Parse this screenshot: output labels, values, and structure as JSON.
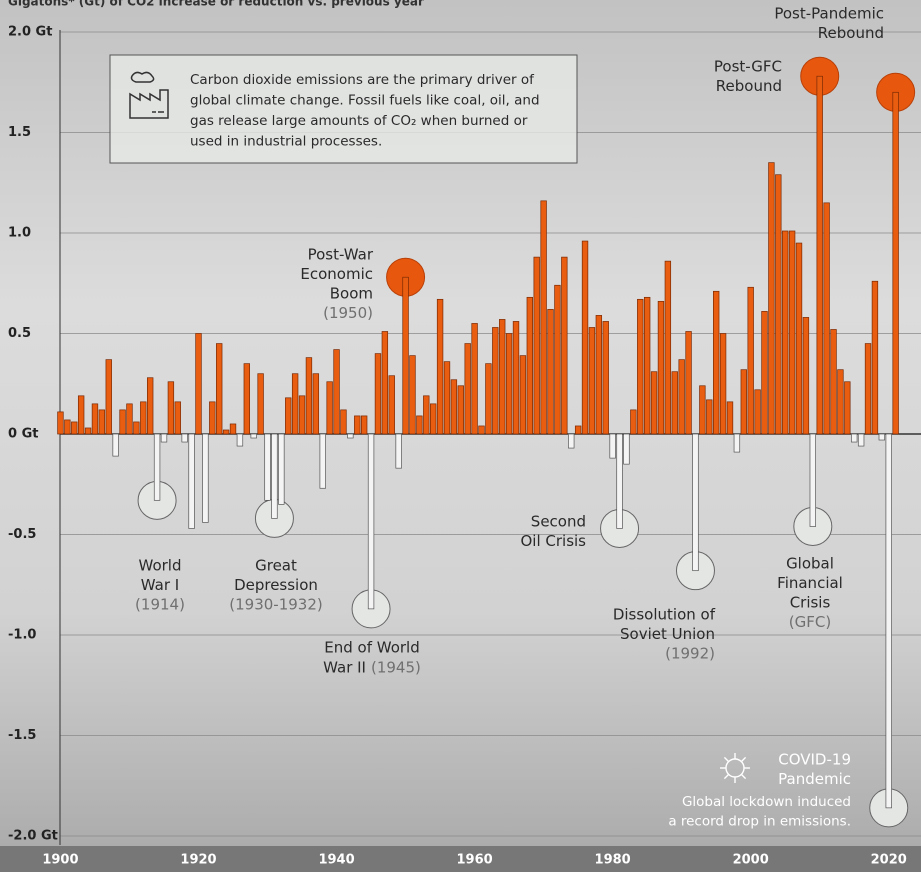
{
  "chart_data": {
    "type": "bar",
    "title": "Gigatons* (Gt) of CO2 increase or reduction vs. previous year",
    "info_box": [
      "Carbon dioxide emissions are the primary driver of",
      "global climate change. Fossil fuels like coal, oil, and",
      "gas release large amounts of CO₂ when burned or",
      "used in industrial processes."
    ],
    "x": [
      1900,
      1901,
      1902,
      1903,
      1904,
      1905,
      1906,
      1907,
      1908,
      1909,
      1910,
      1911,
      1912,
      1913,
      1914,
      1915,
      1916,
      1917,
      1918,
      1919,
      1920,
      1921,
      1922,
      1923,
      1924,
      1925,
      1926,
      1927,
      1928,
      1929,
      1930,
      1931,
      1932,
      1933,
      1934,
      1935,
      1936,
      1937,
      1938,
      1939,
      1940,
      1941,
      1942,
      1943,
      1944,
      1945,
      1946,
      1947,
      1948,
      1949,
      1950,
      1951,
      1952,
      1953,
      1954,
      1955,
      1956,
      1957,
      1958,
      1959,
      1960,
      1961,
      1962,
      1963,
      1964,
      1965,
      1966,
      1967,
      1968,
      1969,
      1970,
      1971,
      1972,
      1973,
      1974,
      1975,
      1976,
      1977,
      1978,
      1979,
      1980,
      1981,
      1982,
      1983,
      1984,
      1985,
      1986,
      1987,
      1988,
      1989,
      1990,
      1991,
      1992,
      1993,
      1994,
      1995,
      1996,
      1997,
      1998,
      1999,
      2000,
      2001,
      2002,
      2003,
      2004,
      2005,
      2006,
      2007,
      2008,
      2009,
      2010,
      2011,
      2012,
      2013,
      2014,
      2015,
      2016,
      2017,
      2018,
      2019,
      2020,
      2021
    ],
    "values": [
      0.11,
      0.07,
      0.06,
      0.19,
      0.03,
      0.15,
      0.12,
      0.37,
      -0.11,
      0.12,
      0.15,
      0.06,
      0.16,
      0.28,
      -0.33,
      -0.04,
      0.26,
      0.16,
      -0.04,
      -0.47,
      0.5,
      -0.44,
      0.16,
      0.45,
      0.02,
      0.05,
      -0.06,
      0.35,
      -0.02,
      0.3,
      -0.33,
      -0.42,
      -0.35,
      0.18,
      0.3,
      0.19,
      0.38,
      0.3,
      -0.27,
      0.26,
      0.42,
      0.12,
      -0.02,
      0.09,
      0.09,
      -0.87,
      0.4,
      0.51,
      0.29,
      -0.17,
      0.78,
      0.39,
      0.09,
      0.19,
      0.15,
      0.67,
      0.36,
      0.27,
      0.24,
      0.45,
      0.55,
      0.04,
      0.35,
      0.53,
      0.57,
      0.5,
      0.56,
      0.39,
      0.68,
      0.88,
      1.16,
      0.62,
      0.74,
      0.88,
      -0.07,
      0.04,
      0.96,
      0.53,
      0.59,
      0.56,
      -0.12,
      -0.47,
      -0.15,
      0.12,
      0.67,
      0.68,
      0.31,
      0.66,
      0.86,
      0.31,
      0.37,
      0.51,
      -0.68,
      0.24,
      0.17,
      0.71,
      0.5,
      0.16,
      -0.09,
      0.32,
      0.73,
      0.22,
      0.61,
      1.35,
      1.29,
      1.01,
      1.01,
      0.95,
      0.58,
      -0.46,
      1.78,
      1.15,
      0.52,
      0.32,
      0.26,
      -0.04,
      -0.06,
      0.45,
      0.76,
      -0.03,
      -1.86,
      1.7
    ],
    "positive_color": "#e85d10",
    "negative_color": "#f3f4f3",
    "xlim": [
      1899.5,
      2022.5
    ],
    "xticks": [
      1900,
      1920,
      1940,
      1960,
      1980,
      2000,
      2020
    ],
    "ylim": [
      -2,
      2
    ],
    "yticks": [
      {
        "value": -2,
        "label": "-2.0 Gt"
      },
      {
        "value": -1.5,
        "label": "-1.5"
      },
      {
        "value": -1,
        "label": "-1.0"
      },
      {
        "value": -0.5,
        "label": "-0.5"
      },
      {
        "value": 0,
        "label": "0 Gt"
      },
      {
        "value": 0.5,
        "label": "0.5"
      },
      {
        "value": 1,
        "label": "1.0"
      },
      {
        "value": 1.5,
        "label": "1.5"
      },
      {
        "value": 2,
        "label": "2.0 Gt"
      }
    ],
    "grid": true,
    "annotations": [
      {
        "lines": [
          "Post-Pandemic",
          "Rebound"
        ]
      },
      {
        "lines": [
          "Post-GFC",
          "Rebound"
        ]
      },
      {
        "lines": [
          "Post-War",
          "Economic",
          "Boom"
        ],
        "note": "(1950)"
      },
      {
        "lines": [
          "World",
          "War I"
        ],
        "note": "(1914)"
      },
      {
        "lines": [
          "Great",
          "Depression"
        ],
        "note": "(1930-1932)"
      },
      {
        "lines": [
          "End of World",
          "War II"
        ],
        "note": "(1945)"
      },
      {
        "lines": [
          "Second",
          "Oil Crisis"
        ]
      },
      {
        "lines": [
          "Dissolution of",
          "Soviet Union"
        ],
        "note": "(1992)"
      },
      {
        "lines": [
          "Global",
          "Financial",
          "Crisis"
        ],
        "note": "(GFC)"
      },
      {
        "lines": [
          "COVID-19",
          "Pandemic"
        ]
      },
      {
        "lines": [
          "Global lockdown induced",
          "a record drop in emissions."
        ]
      }
    ]
  }
}
